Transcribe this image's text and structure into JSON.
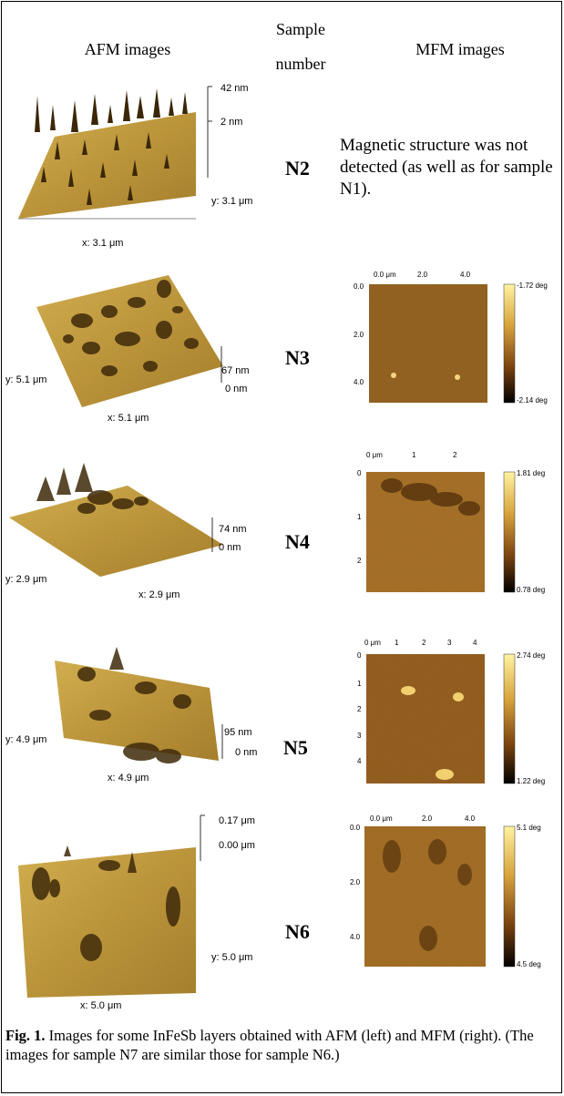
{
  "headers": {
    "afm": "AFM images",
    "sample_line1": "Sample",
    "sample_line2": "number",
    "mfm": "MFM images"
  },
  "rows": [
    {
      "sample": "N2",
      "afm": {
        "z_top": "42 nm",
        "z_bottom": "2 nm",
        "x_label": "x: 3.1 μm",
        "y_label": "y: 3.1 μm"
      },
      "mfm_note": "Magnetic structure was not detected (as well as for sample N1)."
    },
    {
      "sample": "N3",
      "afm": {
        "z_top": "67 nm",
        "z_bottom": "0 nm",
        "x_label": "x: 5.1 μm",
        "y_label": "y: 5.1 μm"
      },
      "mfm": {
        "x_ticks": [
          "0.0 μm",
          "2.0",
          "4.0"
        ],
        "y_ticks": [
          "0.0",
          "2.0",
          "4.0"
        ],
        "scale_top": "-1.72 deg",
        "scale_bottom": "-2.14 deg"
      }
    },
    {
      "sample": "N4",
      "afm": {
        "z_top": "74 nm",
        "z_bottom": "0 nm",
        "x_label": "x: 2.9 μm",
        "y_label": "y: 2.9 μm"
      },
      "mfm": {
        "x_ticks": [
          "0 μm",
          "1",
          "2"
        ],
        "y_ticks": [
          "0",
          "1",
          "2"
        ],
        "scale_top": "1.81 deg",
        "scale_bottom": "0.78 deg"
      }
    },
    {
      "sample": "N5",
      "afm": {
        "z_top": "95 nm",
        "z_bottom": "0 nm",
        "x_label": "x: 4.9 μm",
        "y_label": "y: 4.9 μm"
      },
      "mfm": {
        "x_ticks": [
          "0 μm",
          "1",
          "2",
          "3",
          "4"
        ],
        "y_ticks": [
          "0",
          "1",
          "2",
          "3",
          "4"
        ],
        "scale_top": "2.74 deg",
        "scale_bottom": "1.22 deg"
      }
    },
    {
      "sample": "N6",
      "afm": {
        "z_top": "0.17 μm",
        "z_bottom": "0.00 μm",
        "x_label": "x: 5.0 μm",
        "y_label": "y: 5.0 μm"
      },
      "mfm": {
        "x_ticks": [
          "0.0 μm",
          "2.0",
          "4.0"
        ],
        "y_ticks": [
          "0.0",
          "2.0",
          "4.0"
        ],
        "scale_top": "5.1 deg",
        "scale_bottom": "4.5 deg"
      }
    }
  ],
  "caption": {
    "lead": "Fig. 1.",
    "text": " Images for some InFeSb layers obtained with AFM (left) and MFM (right). (The images for sample N7 are similar those for sample N6.)"
  },
  "colors": {
    "gold_light": "#d8b24a",
    "gold_mid": "#b38a2c",
    "gold_dark": "#5a3d10",
    "mfm_base": "#9a5a16"
  }
}
